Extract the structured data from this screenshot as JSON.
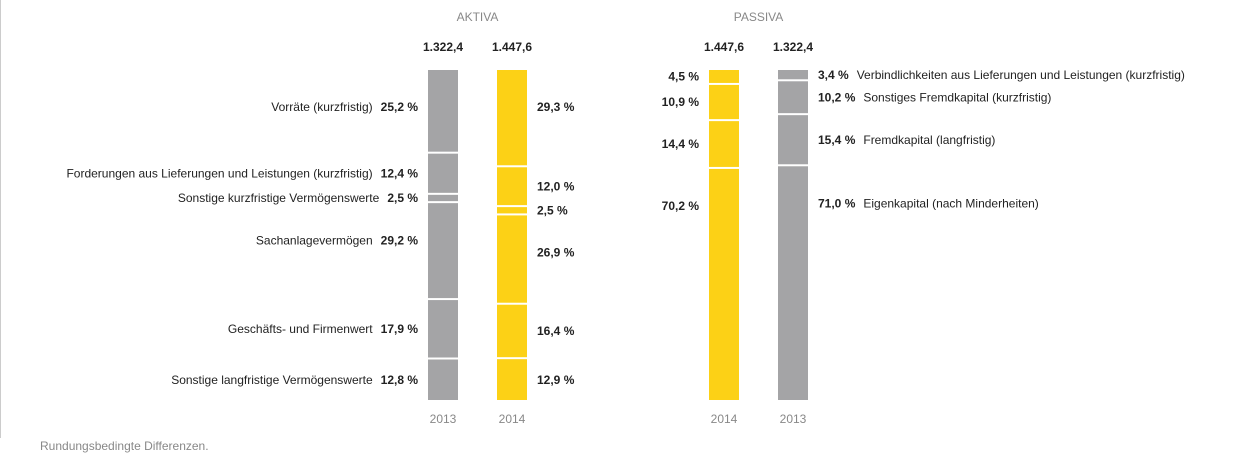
{
  "chart_data": [
    {
      "type": "stacked_bar",
      "title": "AKTIVA",
      "categories": [
        "2013",
        "2014"
      ],
      "colors": [
        "#a4a4a6",
        "#fcd116"
      ],
      "totals": [
        {
          "value": 1322.4,
          "label": "1.322,4"
        },
        {
          "value": 1447.6,
          "label": "1.447,6"
        }
      ],
      "ylim": [
        0,
        100
      ],
      "label_side": "left",
      "series": [
        {
          "name": "Vorräte (kurzfristig)",
          "values": [
            25.2,
            29.3
          ],
          "value_labels": [
            "25,2 %",
            "29,3 %"
          ]
        },
        {
          "name": "Forderungen aus Lieferungen und Leistungen (kurzfristig)",
          "values": [
            12.4,
            12.0
          ],
          "value_labels": [
            "12,4 %",
            "12,0 %"
          ]
        },
        {
          "name": "Sonstige kurzfristige Vermögenswerte",
          "values": [
            2.5,
            2.5
          ],
          "value_labels": [
            "2,5 %",
            "2,5 %"
          ]
        },
        {
          "name": "Sachanlagevermögen",
          "values": [
            29.2,
            26.9
          ],
          "value_labels": [
            "29,2 %",
            "26,9 %"
          ]
        },
        {
          "name": "Geschäfts- und Firmenwert",
          "values": [
            17.9,
            16.4
          ],
          "value_labels": [
            "17,9 %",
            "16,4 %"
          ]
        },
        {
          "name": "Sonstige langfristige Vermögenswerte",
          "values": [
            12.8,
            12.9
          ],
          "value_labels": [
            "12,8 %",
            "12,9 %"
          ]
        }
      ]
    },
    {
      "type": "stacked_bar",
      "title": "PASSIVA",
      "categories": [
        "2014",
        "2013"
      ],
      "colors": [
        "#fcd116",
        "#a4a4a6"
      ],
      "totals": [
        {
          "value": 1447.6,
          "label": "1.447,6"
        },
        {
          "value": 1322.4,
          "label": "1.322,4"
        }
      ],
      "ylim": [
        0,
        100
      ],
      "label_side": "right",
      "series": [
        {
          "name": "Verbindlichkeiten aus Lieferungen und Leistungen (kurzfristig)",
          "values": [
            4.5,
            3.4
          ],
          "value_labels": [
            "4,5 %",
            "3,4 %"
          ]
        },
        {
          "name": "Sonstiges Fremdkapital (kurzfristig)",
          "values": [
            10.9,
            10.2
          ],
          "value_labels": [
            "10,9 %",
            "10,2 %"
          ]
        },
        {
          "name": "Fremdkapital (langfristig)",
          "values": [
            14.4,
            15.4
          ],
          "value_labels": [
            "14,4 %",
            "15,4 %"
          ]
        },
        {
          "name": "Eigenkapital (nach Minderheiten)",
          "values": [
            70.2,
            71.0
          ],
          "value_labels": [
            "70,2 %",
            "71,0 %"
          ]
        }
      ]
    }
  ],
  "note": "Rundungsbedingte Differenzen."
}
